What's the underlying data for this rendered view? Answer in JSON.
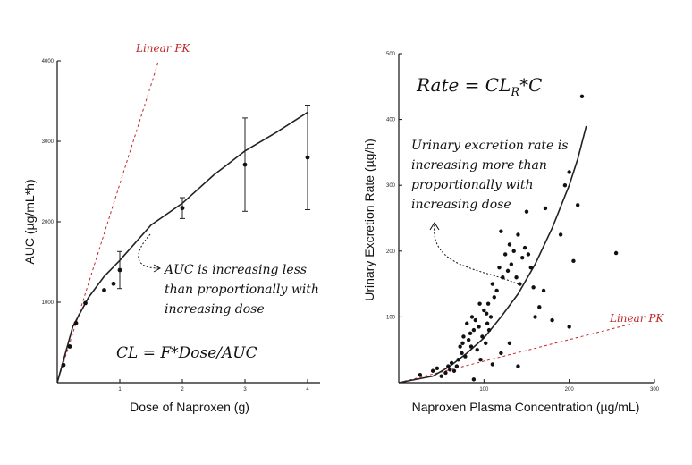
{
  "chart_data": [
    {
      "type": "scatter",
      "xlabel": "Dose of Naproxen (g)",
      "ylabel": "AUC (µg/mL*h)",
      "xlim": [
        0,
        4.2
      ],
      "ylim": [
        0,
        4000
      ],
      "x_ticks": [
        "1",
        "2",
        "3",
        "4"
      ],
      "y_ticks": [
        "1000",
        "2000",
        "3000",
        "4000"
      ],
      "points": [
        {
          "x": 0.1,
          "y": 220
        },
        {
          "x": 0.2,
          "y": 450
        },
        {
          "x": 0.3,
          "y": 740
        },
        {
          "x": 0.45,
          "y": 990
        },
        {
          "x": 0.75,
          "y": 1150
        },
        {
          "x": 0.9,
          "y": 1230
        },
        {
          "x": 1.0,
          "y": 1400,
          "err": 230
        },
        {
          "x": 2.0,
          "y": 2170,
          "err": 130
        },
        {
          "x": 3.0,
          "y": 2710,
          "err": 580
        },
        {
          "x": 4.0,
          "y": 2800,
          "err": 650
        }
      ],
      "fit_curve": [
        [
          0,
          0
        ],
        [
          0.25,
          700
        ],
        [
          0.5,
          1060
        ],
        [
          0.75,
          1320
        ],
        [
          1,
          1520
        ],
        [
          1.5,
          1960
        ],
        [
          2,
          2230
        ],
        [
          2.5,
          2580
        ],
        [
          3,
          2880
        ],
        [
          3.5,
          3110
        ],
        [
          4,
          3360
        ]
      ],
      "reference_line": {
        "label": "Linear PK",
        "points": [
          [
            0,
            0
          ],
          [
            1.62,
            4000
          ]
        ]
      },
      "annotations": {
        "linear_label": "Linear PK",
        "note_lines": [
          "AUC is increasing less",
          "than proportionally with",
          "increasing dose"
        ],
        "equation": "CL = F*Dose/AUC"
      }
    },
    {
      "type": "scatter",
      "xlabel": "Naproxen Plasma Concentration (µg/mL)",
      "ylabel": "Urinary Excretion Rate (µg/h)",
      "xlim": [
        0,
        300
      ],
      "ylim": [
        0,
        500
      ],
      "x_ticks": [
        "100",
        "200",
        "300"
      ],
      "y_ticks": [
        "100",
        "200",
        "300",
        "400",
        "500"
      ],
      "points": [
        [
          25,
          12
        ],
        [
          40,
          18
        ],
        [
          45,
          22
        ],
        [
          50,
          10
        ],
        [
          55,
          15
        ],
        [
          58,
          25
        ],
        [
          60,
          20
        ],
        [
          62,
          30
        ],
        [
          65,
          18
        ],
        [
          68,
          25
        ],
        [
          70,
          35
        ],
        [
          72,
          55
        ],
        [
          74,
          45
        ],
        [
          75,
          60
        ],
        [
          76,
          70
        ],
        [
          78,
          40
        ],
        [
          80,
          90
        ],
        [
          82,
          65
        ],
        [
          84,
          75
        ],
        [
          85,
          55
        ],
        [
          86,
          100
        ],
        [
          88,
          80
        ],
        [
          90,
          95
        ],
        [
          92,
          50
        ],
        [
          94,
          85
        ],
        [
          96,
          35
        ],
        [
          98,
          70
        ],
        [
          100,
          110
        ],
        [
          102,
          60
        ],
        [
          103,
          105
        ],
        [
          104,
          90
        ],
        [
          105,
          120
        ],
        [
          106,
          80
        ],
        [
          108,
          100
        ],
        [
          110,
          150
        ],
        [
          112,
          130
        ],
        [
          115,
          140
        ],
        [
          118,
          175
        ],
        [
          120,
          230
        ],
        [
          122,
          160
        ],
        [
          125,
          195
        ],
        [
          128,
          170
        ],
        [
          130,
          210
        ],
        [
          132,
          180
        ],
        [
          135,
          200
        ],
        [
          138,
          160
        ],
        [
          140,
          225
        ],
        [
          142,
          150
        ],
        [
          145,
          190
        ],
        [
          148,
          205
        ],
        [
          150,
          260
        ],
        [
          152,
          195
        ],
        [
          155,
          175
        ],
        [
          158,
          145
        ],
        [
          160,
          100
        ],
        [
          165,
          115
        ],
        [
          170,
          140
        ],
        [
          172,
          265
        ],
        [
          180,
          95
        ],
        [
          190,
          225
        ],
        [
          195,
          300
        ],
        [
          200,
          320
        ],
        [
          205,
          185
        ],
        [
          210,
          270
        ],
        [
          215,
          435
        ],
        [
          200,
          85
        ],
        [
          120,
          45
        ],
        [
          130,
          60
        ],
        [
          95,
          120
        ],
        [
          110,
          28
        ],
        [
          255,
          197
        ],
        [
          140,
          25
        ],
        [
          88,
          5
        ]
      ],
      "fit_curve": [
        [
          0,
          0
        ],
        [
          40,
          10
        ],
        [
          60,
          25
        ],
        [
          80,
          45
        ],
        [
          100,
          68
        ],
        [
          120,
          100
        ],
        [
          140,
          135
        ],
        [
          160,
          180
        ],
        [
          180,
          235
        ],
        [
          200,
          300
        ],
        [
          210,
          340
        ],
        [
          220,
          390
        ]
      ],
      "reference_line": {
        "label": "Linear PK",
        "points": [
          [
            0,
            0
          ],
          [
            275,
            90
          ]
        ]
      },
      "annotations": {
        "equation_prefix": "Rate = CL",
        "equation_sub": "R",
        "equation_suffix": "*C",
        "linear_label": "Linear PK",
        "note_lines": [
          "Urinary excretion rate is",
          "increasing more than",
          "proportionally with",
          "increasing dose"
        ]
      }
    }
  ],
  "colors": {
    "red": "#c0282a",
    "ink": "#111111"
  }
}
